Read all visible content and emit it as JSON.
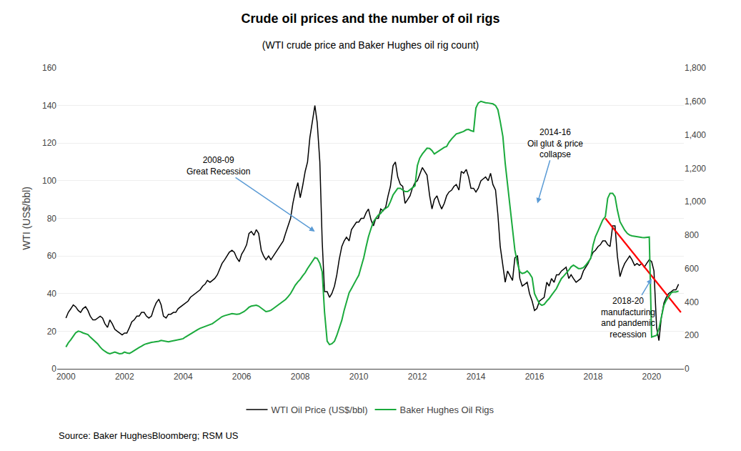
{
  "chart_data": {
    "type": "line",
    "title": "Crude oil prices and the number of oil rigs",
    "subtitle": "(WTI crude price and Baker Hughes oil rig count)",
    "y_label": "WTI (US$/bbl)",
    "source": "Source: Baker HughesBloomberg; RSM US",
    "grid": true,
    "legend": "bottom",
    "xlim": [
      1999.7,
      2021.1
    ],
    "xticks": [
      2000,
      2002,
      2004,
      2006,
      2008,
      2010,
      2012,
      2014,
      2016,
      2018,
      2020
    ],
    "ylim": [
      0,
      160
    ],
    "yticks": [
      0,
      20,
      40,
      60,
      80,
      100,
      120,
      140,
      160
    ],
    "y2lim": [
      0,
      1800
    ],
    "y2ticks": [
      0,
      200,
      400,
      600,
      800,
      {
        "value": 1000,
        "label": "1,000"
      },
      {
        "value": 1200,
        "label": "1,200"
      },
      {
        "value": 1400,
        "label": "1,400"
      },
      {
        "value": 1600,
        "label": "1,600"
      },
      {
        "value": 1800,
        "label": "1,800"
      }
    ],
    "x": [
      2000.0,
      2000.08,
      2000.17,
      2000.25,
      2000.33,
      2000.42,
      2000.5,
      2000.58,
      2000.67,
      2000.75,
      2000.83,
      2000.92,
      2001.0,
      2001.08,
      2001.17,
      2001.25,
      2001.33,
      2001.42,
      2001.5,
      2001.58,
      2001.67,
      2001.75,
      2001.83,
      2001.92,
      2002.0,
      2002.08,
      2002.17,
      2002.25,
      2002.33,
      2002.42,
      2002.5,
      2002.58,
      2002.67,
      2002.75,
      2002.83,
      2002.92,
      2003.0,
      2003.08,
      2003.17,
      2003.25,
      2003.33,
      2003.42,
      2003.5,
      2003.58,
      2003.67,
      2003.75,
      2003.83,
      2003.92,
      2004.0,
      2004.08,
      2004.17,
      2004.25,
      2004.33,
      2004.42,
      2004.5,
      2004.58,
      2004.67,
      2004.75,
      2004.83,
      2004.92,
      2005.0,
      2005.08,
      2005.17,
      2005.25,
      2005.33,
      2005.42,
      2005.5,
      2005.58,
      2005.67,
      2005.75,
      2005.83,
      2005.92,
      2006.0,
      2006.08,
      2006.17,
      2006.25,
      2006.33,
      2006.42,
      2006.5,
      2006.58,
      2006.67,
      2006.75,
      2006.83,
      2006.92,
      2007.0,
      2007.08,
      2007.17,
      2007.25,
      2007.33,
      2007.42,
      2007.5,
      2007.58,
      2007.67,
      2007.75,
      2007.83,
      2007.92,
      2008.0,
      2008.08,
      2008.17,
      2008.25,
      2008.33,
      2008.42,
      2008.5,
      2008.58,
      2008.67,
      2008.75,
      2008.83,
      2008.92,
      2009.0,
      2009.08,
      2009.17,
      2009.25,
      2009.33,
      2009.42,
      2009.5,
      2009.58,
      2009.67,
      2009.75,
      2009.83,
      2009.92,
      2010.0,
      2010.08,
      2010.17,
      2010.25,
      2010.33,
      2010.42,
      2010.5,
      2010.58,
      2010.67,
      2010.75,
      2010.83,
      2010.92,
      2011.0,
      2011.08,
      2011.17,
      2011.25,
      2011.33,
      2011.42,
      2011.5,
      2011.58,
      2011.67,
      2011.75,
      2011.83,
      2011.92,
      2012.0,
      2012.08,
      2012.17,
      2012.25,
      2012.33,
      2012.42,
      2012.5,
      2012.58,
      2012.67,
      2012.75,
      2012.83,
      2012.92,
      2013.0,
      2013.08,
      2013.17,
      2013.25,
      2013.33,
      2013.42,
      2013.5,
      2013.58,
      2013.67,
      2013.75,
      2013.83,
      2013.92,
      2014.0,
      2014.08,
      2014.17,
      2014.25,
      2014.33,
      2014.42,
      2014.5,
      2014.58,
      2014.67,
      2014.75,
      2014.83,
      2014.92,
      2015.0,
      2015.08,
      2015.17,
      2015.25,
      2015.33,
      2015.42,
      2015.5,
      2015.58,
      2015.67,
      2015.75,
      2015.83,
      2015.92,
      2016.0,
      2016.08,
      2016.17,
      2016.25,
      2016.33,
      2016.42,
      2016.5,
      2016.58,
      2016.67,
      2016.75,
      2016.83,
      2016.92,
      2017.0,
      2017.08,
      2017.17,
      2017.25,
      2017.33,
      2017.42,
      2017.5,
      2017.58,
      2017.67,
      2017.75,
      2017.83,
      2017.92,
      2018.0,
      2018.08,
      2018.17,
      2018.25,
      2018.33,
      2018.42,
      2018.5,
      2018.58,
      2018.67,
      2018.75,
      2018.83,
      2018.92,
      2019.0,
      2019.08,
      2019.17,
      2019.25,
      2019.33,
      2019.42,
      2019.5,
      2019.58,
      2019.67,
      2019.75,
      2019.83,
      2019.92,
      2020.0,
      2020.08,
      2020.17,
      2020.25,
      2020.33,
      2020.42,
      2020.5,
      2020.58,
      2020.67,
      2020.75,
      2020.83,
      2020.92
    ],
    "series": [
      {
        "name": "WTI Oil Price (US$/bbl)",
        "color": "#000000",
        "values": [
          27,
          30,
          32,
          34,
          33,
          31,
          30,
          32,
          33,
          31,
          28,
          26,
          26,
          27,
          28,
          27,
          24,
          22,
          26,
          24,
          21,
          20,
          19,
          18,
          19,
          19,
          22,
          25,
          26,
          28,
          28,
          30,
          30,
          28,
          27,
          28,
          32,
          35,
          37,
          34,
          28,
          27,
          29,
          29,
          30,
          30,
          32,
          33,
          34,
          35,
          36,
          38,
          39,
          40,
          41,
          42,
          44,
          45,
          47,
          46,
          47,
          48,
          50,
          53,
          56,
          58,
          60,
          62,
          63,
          62,
          59,
          57,
          61,
          63,
          66,
          72,
          73,
          71,
          74,
          72,
          63,
          60,
          58,
          60,
          58,
          60,
          62,
          64,
          66,
          68,
          72,
          76,
          80,
          88,
          94,
          99,
          91,
          97,
          105,
          110,
          123,
          132,
          140,
          131,
          110,
          68,
          41,
          41,
          38,
          40,
          44,
          50,
          58,
          65,
          68,
          70,
          68,
          74,
          76,
          78,
          78,
          80,
          80,
          83,
          85,
          79,
          76,
          80,
          80,
          85,
          84,
          86,
          92,
          97,
          108,
          110,
          102,
          98,
          97,
          88,
          90,
          92,
          96,
          99,
          100,
          103,
          107,
          105,
          103,
          92,
          85,
          90,
          92,
          88,
          85,
          88,
          92,
          94,
          95,
          97,
          98,
          95,
          105,
          104,
          106,
          102,
          96,
          96,
          94,
          96,
          100,
          101,
          102,
          100,
          104,
          98,
          95,
          82,
          65,
          55,
          46,
          52,
          49,
          47,
          59,
          60,
          48,
          44,
          45,
          46,
          40,
          36,
          31,
          32,
          36,
          37,
          38,
          46,
          44,
          48,
          46,
          50,
          50,
          52,
          53,
          54,
          48,
          50,
          48,
          46,
          47,
          48,
          52,
          54,
          56,
          59,
          62,
          63,
          65,
          66,
          68,
          68,
          66,
          65,
          76,
          76,
          60,
          49,
          53,
          56,
          58,
          60,
          58,
          55,
          56,
          55,
          56,
          54,
          56,
          58,
          57,
          52,
          22,
          15,
          27,
          35,
          38,
          40,
          41,
          42,
          42,
          45
        ]
      },
      {
        "name": "Baker Hughes Oil Rigs",
        "color": "#1aaa3c",
        "axis": "y2",
        "values": [
          130,
          155,
          175,
          195,
          215,
          225,
          222,
          215,
          210,
          205,
          190,
          175,
          165,
          150,
          130,
          115,
          105,
          95,
          90,
          95,
          100,
          95,
          90,
          92,
          100,
          95,
          92,
          100,
          110,
          120,
          128,
          135,
          145,
          150,
          155,
          158,
          160,
          162,
          165,
          170,
          168,
          165,
          162,
          165,
          168,
          170,
          175,
          178,
          180,
          190,
          200,
          210,
          218,
          228,
          235,
          242,
          248,
          252,
          260,
          265,
          270,
          280,
          292,
          305,
          312,
          318,
          322,
          325,
          330,
          328,
          326,
          328,
          335,
          342,
          355,
          368,
          375,
          378,
          380,
          375,
          362,
          350,
          342,
          345,
          350,
          360,
          372,
          385,
          395,
          405,
          415,
          430,
          450,
          475,
          500,
          520,
          535,
          555,
          575,
          600,
          620,
          640,
          665,
          660,
          630,
          580,
          340,
          165,
          145,
          150,
          165,
          200,
          240,
          290,
          350,
          400,
          455,
          480,
          508,
          535,
          560,
          610,
          665,
          730,
          790,
          840,
          880,
          900,
          920,
          930,
          950,
          960,
          970,
          1000,
          1040,
          1060,
          1080,
          1080,
          1070,
          1060,
          1060,
          1070,
          1080,
          1095,
          1215,
          1260,
          1285,
          1305,
          1320,
          1318,
          1305,
          1285,
          1295,
          1305,
          1315,
          1325,
          1330,
          1355,
          1375,
          1390,
          1405,
          1410,
          1415,
          1420,
          1430,
          1432,
          1425,
          1420,
          1560,
          1590,
          1600,
          1595,
          1592,
          1590,
          1588,
          1585,
          1575,
          1550,
          1480,
          1390,
          1230,
          1100,
          950,
          820,
          710,
          630,
          580,
          570,
          575,
          585,
          570,
          545,
          450,
          420,
          390,
          380,
          385,
          405,
          420,
          440,
          460,
          480,
          510,
          540,
          555,
          570,
          590,
          610,
          620,
          610,
          600,
          600,
          605,
          620,
          640,
          660,
          740,
          790,
          825,
          855,
          890,
          910,
          1020,
          1050,
          1050,
          1030,
          950,
          880,
          852,
          830,
          810,
          800,
          795,
          792,
          790,
          788,
          786,
          785,
          785,
          788,
          190,
          195,
          200,
          240,
          310,
          380,
          410,
          430,
          455,
          460,
          460,
          465
        ]
      },
      {
        "color": "red",
        "x": [
          2018.42,
          2021.0
        ],
        "values": [
          80,
          30
        ]
      }
    ],
    "annotations": [
      {
        "text": "2008-09\nGreat Recession",
        "x": 2008.5,
        "y": 73,
        "text_x": 2005.2,
        "text_y": 108,
        "color": "#5b9bd5"
      },
      {
        "text": "2014-16\nOil glut & price\ncollapse",
        "x": 2016.1,
        "y": 88,
        "text_x": 2016.7,
        "text_y": 120,
        "color": "#5b9bd5"
      },
      {
        "text": "2018-20\nmanufacturing\nand pandemic\nrecession",
        "x": 2020.0,
        "y": 48,
        "text_x": 2019.2,
        "text_y": 27,
        "color": "#5b9bd5"
      }
    ]
  }
}
